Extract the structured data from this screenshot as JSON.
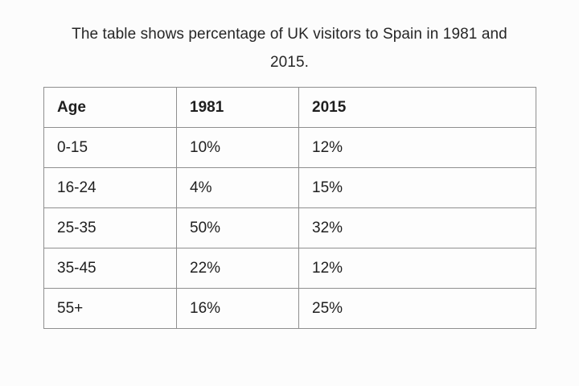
{
  "page": {
    "title_lines": [
      "The table shows percentage of UK visitors to Spain in 1981 and",
      "2015."
    ],
    "background_color": "#fcfcfc",
    "text_color": "#1f1f1f",
    "border_color": "#8f8f8f"
  },
  "chart_data": {
    "type": "table",
    "title": "The table shows percentage of UK visitors to Spain in 1981 and 2015.",
    "columns": [
      "Age",
      "1981",
      "2015"
    ],
    "rows": [
      [
        "0-15",
        "10%",
        "12%"
      ],
      [
        "16-24",
        "4%",
        "15%"
      ],
      [
        "25-35",
        "50%",
        "32%"
      ],
      [
        "35-45",
        "22%",
        "12%"
      ],
      [
        "55+",
        "16%",
        "25%"
      ]
    ],
    "categories": [
      "0-15",
      "16-24",
      "25-35",
      "35-45",
      "55+"
    ],
    "series": [
      {
        "name": "1981",
        "values": [
          10,
          4,
          50,
          22,
          16
        ]
      },
      {
        "name": "2015",
        "values": [
          12,
          15,
          32,
          12,
          25
        ]
      }
    ],
    "unit": "%"
  }
}
